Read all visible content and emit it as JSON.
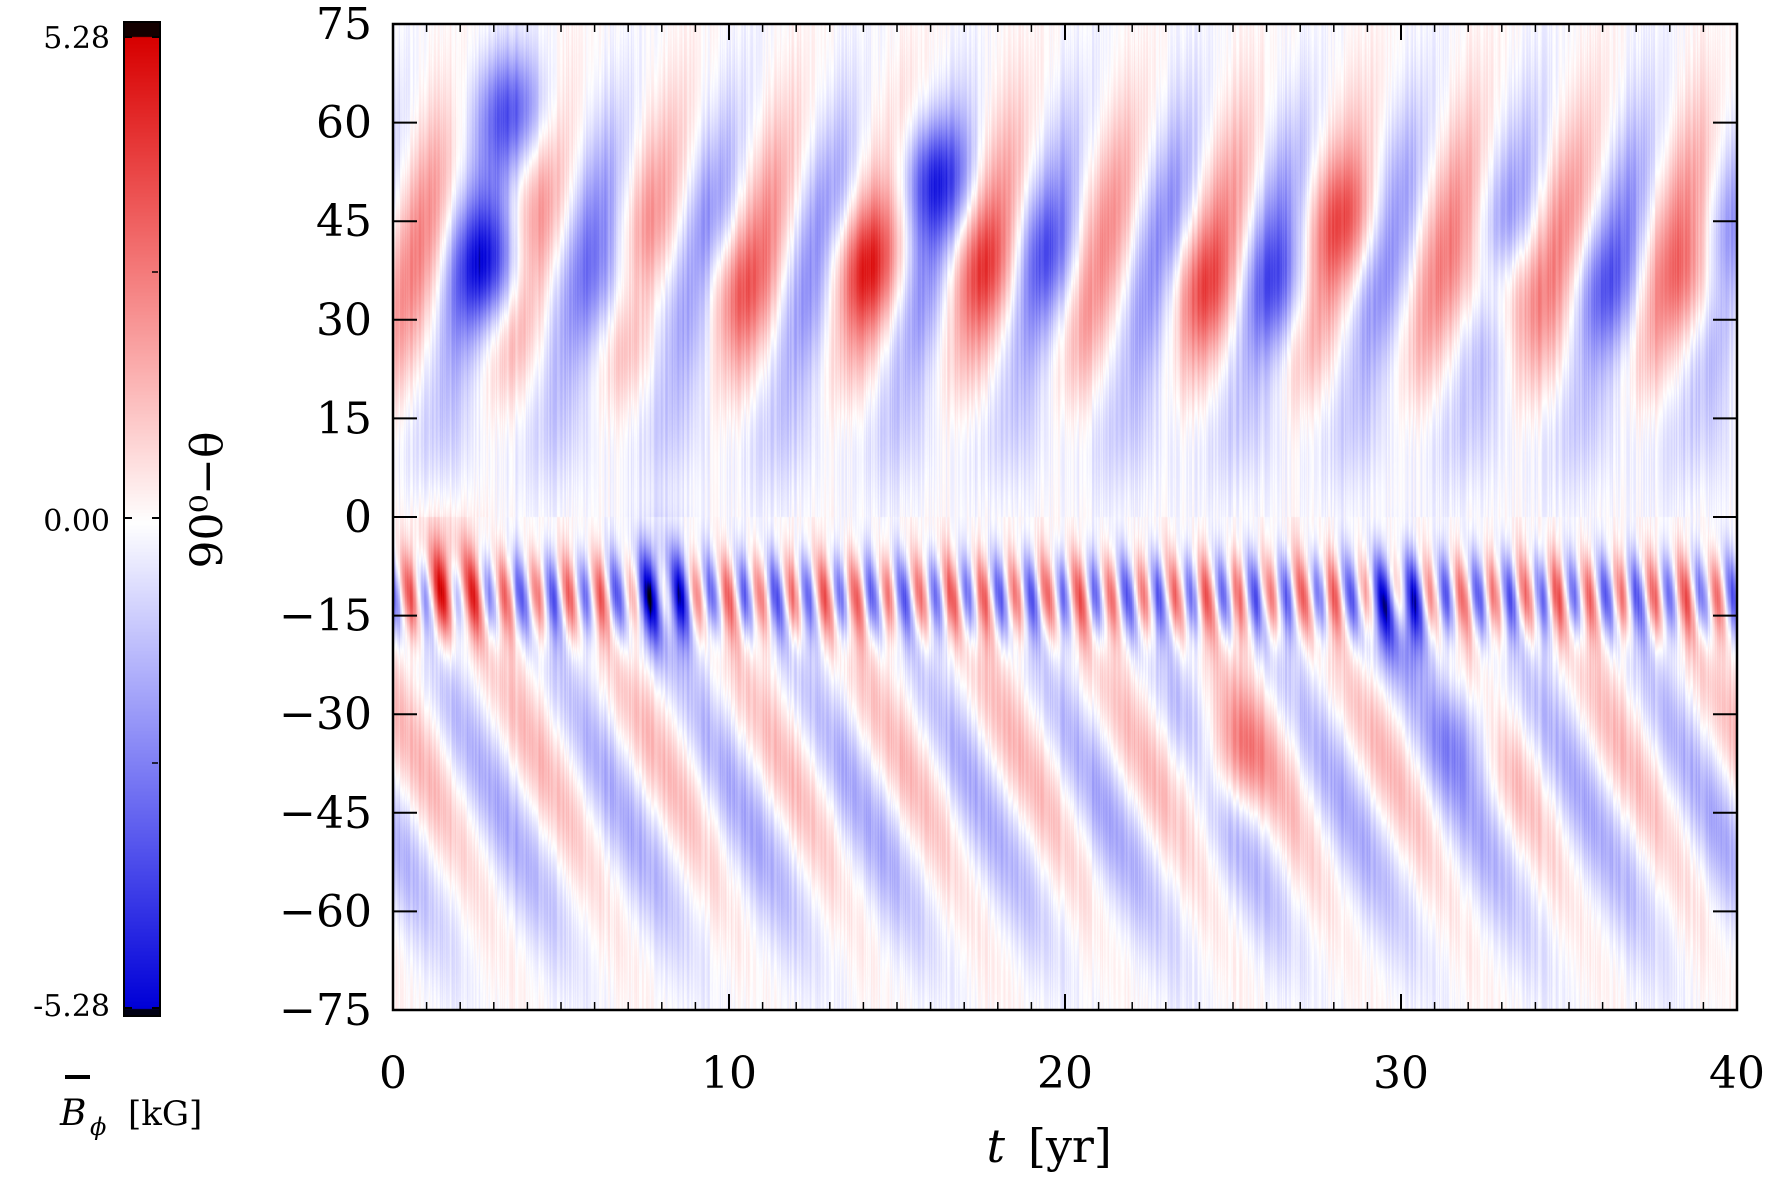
{
  "chart_data": {
    "type": "heatmap",
    "title": "",
    "xlabel_italic": "t",
    "xlabel_unit": "[yr]",
    "ylabel": "90⁰−θ",
    "xlim": [
      0,
      40
    ],
    "ylim": [
      -75,
      75
    ],
    "x_ticks": [
      0,
      10,
      20,
      30,
      40
    ],
    "x_tick_labels": [
      "0",
      "10",
      "20",
      "30",
      "40"
    ],
    "y_ticks": [
      75,
      60,
      45,
      30,
      15,
      0,
      -15,
      -30,
      -45,
      -60,
      -75
    ],
    "y_tick_labels": [
      "75",
      "60",
      "45",
      "30",
      "15",
      "0",
      "−15",
      "−30",
      "−45",
      "−60",
      "−75"
    ],
    "colorbar": {
      "min": -5.28,
      "max": 5.28,
      "tick_labels": [
        "5.28",
        "0.00",
        "-5.28"
      ],
      "label_symbol": "B",
      "label_subscript": "ϕ",
      "label_unit": "[kG]",
      "colormap": [
        "#000000",
        "#0000ff",
        "#ffffff",
        "#ff0000",
        "#000000"
      ]
    },
    "description_free_pattern": {
      "north_band_lat": 35,
      "south_band_lat": -12,
      "features": [
        {
          "t": 3.0,
          "lat": 38,
          "value": -6.0
        },
        {
          "t": 3.5,
          "lat": 62,
          "value": -5.0
        },
        {
          "t": 7.0,
          "lat": 35,
          "value": -2.6
        },
        {
          "t": 10.0,
          "lat": 35,
          "value": 2.9
        },
        {
          "t": 14.0,
          "lat": 38,
          "value": 4.2
        },
        {
          "t": 16.0,
          "lat": 52,
          "value": -5.5
        },
        {
          "t": 17.5,
          "lat": 38,
          "value": 3.0
        },
        {
          "t": 19.5,
          "lat": 40,
          "value": -2.2
        },
        {
          "t": 24.0,
          "lat": 35,
          "value": 3.0
        },
        {
          "t": 26.5,
          "lat": 35,
          "value": -2.8
        },
        {
          "t": 28.5,
          "lat": 45,
          "value": 3.0
        },
        {
          "t": 33.0,
          "lat": 35,
          "value": 3.8
        },
        {
          "t": 36.0,
          "lat": 35,
          "value": -2.2
        },
        {
          "t": 39.0,
          "lat": 35,
          "value": 2.8
        },
        {
          "t": 25.0,
          "lat": -37,
          "value": 3.8
        },
        {
          "t": 30.0,
          "lat": -15,
          "value": -5.0
        },
        {
          "t": 32.0,
          "lat": -32,
          "value": -3.0
        },
        {
          "t": 8.0,
          "lat": -12,
          "value": -5.3
        },
        {
          "t": 1.5,
          "lat": -10,
          "value": 4.0
        }
      ]
    }
  }
}
